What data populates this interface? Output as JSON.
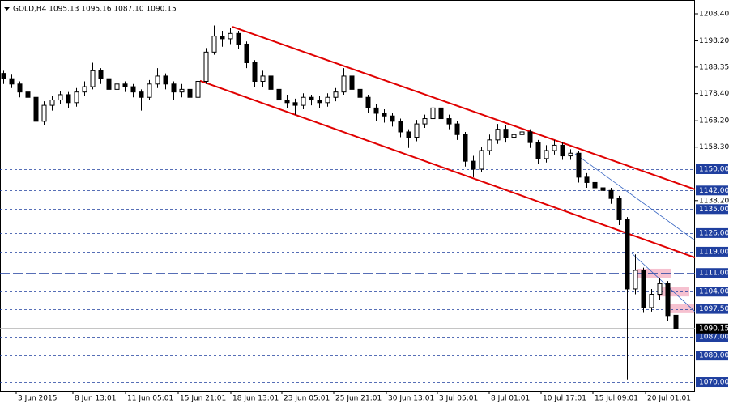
{
  "chart_data": {
    "type": "candlestick",
    "title": "GOLD,H4  1095.13 1095.16 1087.10 1090.15",
    "open": [
      1186,
      1184,
      1182,
      1179,
      1177,
      1168,
      1174,
      1176,
      1178,
      1175,
      1179,
      1181,
      1187,
      1184,
      1180,
      1182,
      1181,
      1179,
      1177,
      1182,
      1185,
      1182,
      1179,
      1180,
      1177,
      1183,
      1194,
      1200,
      1199,
      1201,
      1197,
      1190,
      1183,
      1185,
      1180,
      1176,
      1175,
      1174,
      1177,
      1176,
      1175,
      1177,
      1179,
      1185,
      1180,
      1177,
      1173,
      1171,
      1170,
      1168,
      1164,
      1162,
      1167,
      1169,
      1173,
      1169,
      1167,
      1163,
      1153,
      1150,
      1157,
      1161,
      1165,
      1162,
      1163,
      1164,
      1160,
      1154,
      1157,
      1159,
      1155,
      1156,
      1147,
      1145,
      1143,
      1142,
      1139,
      1131,
      1105,
      1112,
      1098,
      1103,
      1107,
      1095.13
    ],
    "high": [
      1187,
      1185.5,
      1183,
      1180,
      1178,
      1175.5,
      1177.5,
      1179.5,
      1179,
      1180.5,
      1183,
      1190,
      1188,
      1185,
      1183.5,
      1183,
      1182,
      1180,
      1183.5,
      1188,
      1186,
      1183,
      1182,
      1181,
      1184.5,
      1195.5,
      1204,
      1202,
      1203,
      1202,
      1198,
      1191,
      1187,
      1186,
      1181,
      1178,
      1176.5,
      1178.5,
      1178,
      1177.5,
      1178.5,
      1180.5,
      1188,
      1186,
      1181.5,
      1178,
      1174.5,
      1172.5,
      1171,
      1169,
      1165,
      1168.5,
      1170.5,
      1175,
      1174,
      1170.5,
      1168,
      1164,
      1155,
      1158.5,
      1163,
      1167,
      1166.5,
      1165,
      1166,
      1165,
      1161,
      1159,
      1161,
      1160,
      1157.5,
      1157,
      1148.5,
      1146.5,
      1144,
      1143,
      1140,
      1132,
      1118,
      1113,
      1105,
      1109,
      1108,
      1095.16
    ],
    "low": [
      1182,
      1180.5,
      1177,
      1175,
      1163,
      1166.5,
      1172,
      1174.5,
      1173,
      1173.5,
      1177.5,
      1180,
      1182,
      1178,
      1178.5,
      1179,
      1177,
      1172,
      1176,
      1180.5,
      1180,
      1176,
      1177,
      1174,
      1176,
      1182,
      1193,
      1196,
      1197,
      1195,
      1188,
      1181,
      1181,
      1178,
      1174,
      1173,
      1170.5,
      1172.5,
      1174,
      1173,
      1173.5,
      1175.5,
      1178,
      1178,
      1175,
      1171,
      1168,
      1167.5,
      1166,
      1162,
      1158,
      1160.5,
      1165.5,
      1167.5,
      1167,
      1165,
      1161,
      1151,
      1147,
      1149,
      1155.5,
      1159.5,
      1160,
      1160.5,
      1161.5,
      1158,
      1152,
      1152.5,
      1155.5,
      1153.5,
      1153.5,
      1145,
      1143,
      1141.5,
      1140,
      1137,
      1129,
      1071,
      1103,
      1096,
      1096.5,
      1101,
      1093,
      1087.1
    ],
    "close": [
      1184,
      1182,
      1179,
      1177,
      1168,
      1174,
      1176,
      1178,
      1175,
      1179,
      1181,
      1187,
      1184,
      1180,
      1182,
      1181,
      1179,
      1177,
      1182,
      1185,
      1182,
      1179,
      1180,
      1177,
      1183,
      1194,
      1200,
      1199,
      1201,
      1197,
      1190,
      1183,
      1185,
      1180,
      1176,
      1175,
      1174,
      1177,
      1176,
      1175,
      1177,
      1179,
      1185,
      1180,
      1177,
      1173,
      1171,
      1170,
      1168,
      1164,
      1162,
      1167,
      1169,
      1173,
      1169,
      1167,
      1163,
      1153,
      1150,
      1157,
      1161,
      1165,
      1162,
      1163,
      1164,
      1160,
      1154,
      1157,
      1159,
      1155,
      1156,
      1147,
      1145,
      1143,
      1142,
      1139,
      1131,
      1105,
      1112,
      1098,
      1103,
      1107,
      1095,
      1090.15
    ],
    "bull_color": "#ffffff",
    "bear_color": "#000000",
    "xlim": [
      -0.4,
      85.4
    ],
    "xticks": [
      {
        "value": 1.6,
        "label": "3 Jun 2015"
      },
      {
        "value": 8.6,
        "label": "8 Jun 13:01"
      },
      {
        "value": 15.1,
        "label": "11 Jun 05:01"
      },
      {
        "value": 21.6,
        "label": "15 Jun 21:01"
      },
      {
        "value": 28.1,
        "label": "18 Jun 13:01"
      },
      {
        "value": 34.4,
        "label": "23 Jun 05:01"
      },
      {
        "value": 40.8,
        "label": "25 Jun 21:01"
      },
      {
        "value": 47.3,
        "label": "30 Jun 13:01"
      },
      {
        "value": 53.6,
        "label": "3 Jul 05:01"
      },
      {
        "value": 60,
        "label": "8 Jul 01:01"
      },
      {
        "value": 66.4,
        "label": "10 Jul 17:01"
      },
      {
        "value": 72.8,
        "label": "15 Jul 09:01"
      },
      {
        "value": 79.3,
        "label": "20 Jul 01:01"
      }
    ],
    "ylim": [
      1066.66,
      1213.57
    ],
    "yticks": [
      {
        "value": 1208.4,
        "label": "1208.40"
      },
      {
        "value": 1198.2,
        "label": "1198.20"
      },
      {
        "value": 1188.35,
        "label": "1188.35"
      },
      {
        "value": 1178.4,
        "label": "1178.40"
      },
      {
        "value": 1168.2,
        "label": "1168.20"
      },
      {
        "value": 1158.3,
        "label": "1158.30"
      },
      {
        "value": 1138.2,
        "label": "1138.20"
      }
    ],
    "levels": [
      {
        "value": 1150,
        "label": "1150.00"
      },
      {
        "value": 1142,
        "label": "1142.00"
      },
      {
        "value": 1135,
        "label": "1135.00"
      },
      {
        "value": 1126,
        "label": "1126.00"
      },
      {
        "value": 1119,
        "label": "1119.00"
      },
      {
        "value": 1111,
        "label": "1111.00",
        "style": "long"
      },
      {
        "value": 1104,
        "label": "1104.00"
      },
      {
        "value": 1097.5,
        "label": "1097.50"
      },
      {
        "value": 1087,
        "label": "1087.00"
      },
      {
        "value": 1080,
        "label": "1080.00"
      },
      {
        "value": 1070,
        "label": "1070.00"
      }
    ],
    "level_color": "#1f3f9f",
    "last": {
      "value": 1090.15,
      "label": "1090.15"
    },
    "trendlines": [
      {
        "color": "#e00000",
        "x": [
          28.3,
          85.4
        ],
        "y": [
          1203.5,
          1142.4
        ]
      },
      {
        "color": "#e00000",
        "x": [
          24.3,
          85.4
        ],
        "y": [
          1183.2,
          1116.8
        ]
      },
      {
        "color": "#3060c0",
        "x": [
          70.6,
          85.4
        ],
        "y": [
          1155.8,
          1123.2
        ]
      },
      {
        "color": "#3060c0",
        "x": [
          77.6,
          85.4
        ],
        "y": [
          1118.4,
          1096.5
        ]
      }
    ],
    "zones": [
      {
        "color": "#f4b6c8",
        "x": [
          78.3,
          82.4
        ],
        "y": [
          1109.2,
          1112.6
        ]
      },
      {
        "color": "#f4b6c8",
        "x": [
          80.8,
          84.7
        ],
        "y": [
          1102.2,
          1105.6
        ]
      },
      {
        "color": "#f4b6c8",
        "x": [
          81.9,
          85.3
        ],
        "y": [
          1095.9,
          1099.2
        ]
      }
    ]
  }
}
